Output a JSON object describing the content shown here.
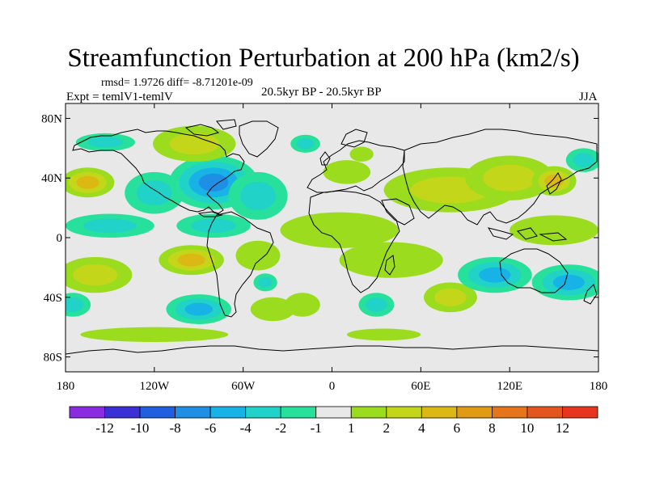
{
  "title": "Streamfunction Perturbation at 200 hPa (km2/s)",
  "stats_line": "rmsd= 1.9726 diff= -8.71201e-09",
  "experiment": "Expt = temlV1-temlV",
  "center_label": "20.5kyr BP - 20.5kyr BP",
  "season": "JJA",
  "lat_ticks": [
    "80N",
    "40N",
    "0",
    "40S",
    "80S"
  ],
  "lon_ticks": [
    "180",
    "120W",
    "60W",
    "0",
    "60E",
    "120E",
    "180"
  ],
  "colorbar": {
    "labels": [
      "-12",
      "-10",
      "-8",
      "-6",
      "-4",
      "-2",
      "-1",
      "1",
      "2",
      "4",
      "6",
      "8",
      "10",
      "12"
    ],
    "colors": [
      "#8a2be2",
      "#3b2fd6",
      "#1f5fe0",
      "#1f8fe6",
      "#17b2e6",
      "#21d2c9",
      "#27e09b",
      "#e8e8e8",
      "#9bdc1e",
      "#c3d61a",
      "#dcb814",
      "#e19a14",
      "#e6741a",
      "#e4561e",
      "#e8361e"
    ]
  },
  "map": {
    "lat_range": [
      -90,
      90
    ],
    "lon_range": [
      -180,
      180
    ],
    "background_value": 0,
    "anomaly_centers": [
      {
        "lon": -165,
        "lat": 37,
        "value": 4.5,
        "lon_r": 18,
        "lat_r": 10
      },
      {
        "lon": -120,
        "lat": 30,
        "value": -2.5,
        "lon_r": 20,
        "lat_r": 14
      },
      {
        "lon": -80,
        "lat": 37,
        "value": -6.5,
        "lon_r": 30,
        "lat_r": 18
      },
      {
        "lon": -50,
        "lat": 28,
        "value": -2.5,
        "lon_r": 20,
        "lat_r": 16
      },
      {
        "lon": -93,
        "lat": 63,
        "value": 2.5,
        "lon_r": 28,
        "lat_r": 12
      },
      {
        "lon": -153,
        "lat": 64,
        "value": -2,
        "lon_r": 20,
        "lat_r": 6
      },
      {
        "lon": -18,
        "lat": 63,
        "value": -2,
        "lon_r": 10,
        "lat_r": 6
      },
      {
        "lon": 20,
        "lat": 56,
        "value": 1.5,
        "lon_r": 8,
        "lat_r": 5
      },
      {
        "lon": 10,
        "lat": 44,
        "value": 1.5,
        "lon_r": 16,
        "lat_r": 8
      },
      {
        "lon": 80,
        "lat": 32,
        "value": 2.5,
        "lon_r": 45,
        "lat_r": 15
      },
      {
        "lon": 120,
        "lat": 40,
        "value": 2.5,
        "lon_r": 30,
        "lat_r": 15
      },
      {
        "lon": 150,
        "lat": 38,
        "value": 4.5,
        "lon_r": 15,
        "lat_r": 10
      },
      {
        "lon": 170,
        "lat": 52,
        "value": -2,
        "lon_r": 12,
        "lat_r": 8
      },
      {
        "lon": -150,
        "lat": 8,
        "value": -2.5,
        "lon_r": 30,
        "lat_r": 8
      },
      {
        "lon": -80,
        "lat": 8,
        "value": -2.5,
        "lon_r": 25,
        "lat_r": 8
      },
      {
        "lon": -50,
        "lat": -12,
        "value": 1.5,
        "lon_r": 15,
        "lat_r": 10
      },
      {
        "lon": 5,
        "lat": 5,
        "value": 1.5,
        "lon_r": 40,
        "lat_r": 12
      },
      {
        "lon": 40,
        "lat": -15,
        "value": 1.5,
        "lon_r": 35,
        "lat_r": 12
      },
      {
        "lon": 150,
        "lat": 5,
        "value": 1.5,
        "lon_r": 30,
        "lat_r": 10
      },
      {
        "lon": -95,
        "lat": -15,
        "value": 4.5,
        "lon_r": 22,
        "lat_r": 10
      },
      {
        "lon": -160,
        "lat": -25,
        "value": 2.5,
        "lon_r": 25,
        "lat_r": 12
      },
      {
        "lon": -175,
        "lat": -45,
        "value": -2,
        "lon_r": 12,
        "lat_r": 8
      },
      {
        "lon": -90,
        "lat": -48,
        "value": -4.5,
        "lon_r": 22,
        "lat_r": 10
      },
      {
        "lon": -40,
        "lat": -48,
        "value": 1.5,
        "lon_r": 15,
        "lat_r": 8
      },
      {
        "lon": -45,
        "lat": -30,
        "value": -2,
        "lon_r": 8,
        "lat_r": 6
      },
      {
        "lon": -20,
        "lat": -45,
        "value": 1.5,
        "lon_r": 12,
        "lat_r": 8
      },
      {
        "lon": 30,
        "lat": -45,
        "value": -2,
        "lon_r": 12,
        "lat_r": 8
      },
      {
        "lon": 80,
        "lat": -40,
        "value": 3.5,
        "lon_r": 18,
        "lat_r": 10
      },
      {
        "lon": 110,
        "lat": -25,
        "value": -4.5,
        "lon_r": 25,
        "lat_r": 12
      },
      {
        "lon": 160,
        "lat": -30,
        "value": -4.5,
        "lon_r": 25,
        "lat_r": 12
      },
      {
        "lon": 35,
        "lat": -65,
        "value": 1.5,
        "lon_r": 25,
        "lat_r": 4
      },
      {
        "lon": -120,
        "lat": -65,
        "value": 1.5,
        "lon_r": 50,
        "lat_r": 5
      }
    ]
  }
}
